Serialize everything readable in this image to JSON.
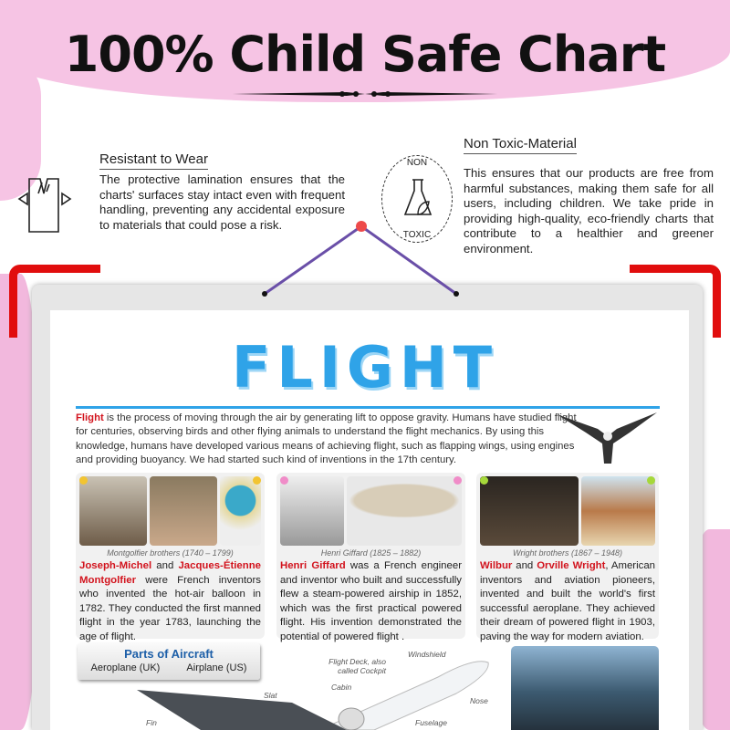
{
  "headline": "100% Child Safe Chart",
  "features": [
    {
      "icon": "torn-shirt-icon",
      "title": "Resistant to Wear",
      "text": "The protective lamination ensures that the charts' surfaces stay intact even with frequent handling, preventing any accidental exposure to materials that could pose a risk."
    },
    {
      "icon": "non-toxic-flask-icon",
      "badge_top": "NON",
      "badge_bottom": "TOXIC",
      "title": "Non Toxic-Material",
      "text": "This ensures that our products are free from harmful substances, making them safe for all users, including children. We take pride in providing high-quality, eco-friendly charts that contribute to a healthier and greener environment."
    }
  ],
  "poster": {
    "title": "FLIGHT",
    "intro_lead": "Flight",
    "intro": " is the process of moving through the air by generating lift to oppose gravity. Humans have studied flight for centuries, observing birds and other flying animals to understand the flight mechanics. By using this knowledge, humans have developed various means of achieving flight, such as flapping wings, using engines and providing buoyancy. We had started such kind of inventions in the 17th century.",
    "cards": [
      {
        "caption": "Montgolfier brothers (1740 – 1799)",
        "name1": "Joseph-Michel",
        "mid": " and ",
        "name2": "Jacques-Étienne Montgolfier",
        "text": " were French inventors who invented the hot-air balloon in 1782. They conducted the first manned flight in the year 1783, launching the age of flight.",
        "dot": "#f2c431"
      },
      {
        "caption": "Henri Giffard (1825 – 1882)",
        "name1": "Henri Giffard",
        "mid": "",
        "name2": "",
        "text": " was a French engineer and inventor who built and successfully flew a steam-powered airship in 1852, which was the first practical powered flight. His invention demonstrated the potential of powered flight .",
        "dot": "#f08cc8"
      },
      {
        "caption": "Wright brothers (1867 – 1948)",
        "name1": "Wilbur",
        "mid": " and ",
        "name2": "Orville Wright",
        "text": ", American inventors and aviation pioneers, invented and built the world's first successful aeroplane. They achieved their dream of powered flight in 1903, paving the way for modern aviation.",
        "dot": "#a6d83a"
      }
    ],
    "parts": {
      "title": "Parts of Aircraft",
      "uk": "Aeroplane (UK)",
      "us": "Airplane (US)",
      "labels": {
        "windshield": "Windshield",
        "flight_deck": "Flight Deck, also called Cockpit",
        "cabin": "Cabin",
        "slat": "Slat",
        "nose": "Nose",
        "fin": "Fin",
        "fuselage": "Fuselage"
      }
    }
  }
}
